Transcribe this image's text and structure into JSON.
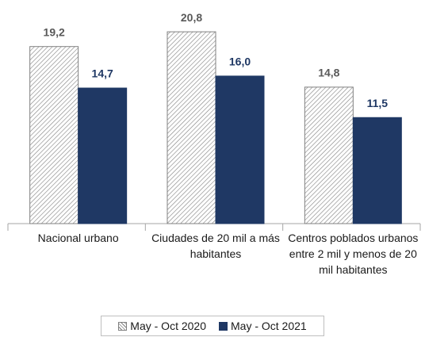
{
  "chart_data": {
    "type": "bar",
    "categories": [
      "Nacional urbano",
      "Ciudades de 20 mil a más habitantes",
      "Centros poblados urbanos entre 2 mil y menos de 20 mil habitantes"
    ],
    "series": [
      {
        "name": "May - Oct 2020",
        "color": "#808080",
        "values": [
          19.2,
          20.8,
          14.8
        ],
        "value_labels": [
          "19,2",
          "20,8",
          "14,8"
        ]
      },
      {
        "name": "May - Oct 2021",
        "color": "#1f3864",
        "values": [
          14.7,
          16.0,
          11.5
        ],
        "value_labels": [
          "14,7",
          "16,0",
          "11,5"
        ]
      }
    ],
    "legend": "bottom"
  }
}
